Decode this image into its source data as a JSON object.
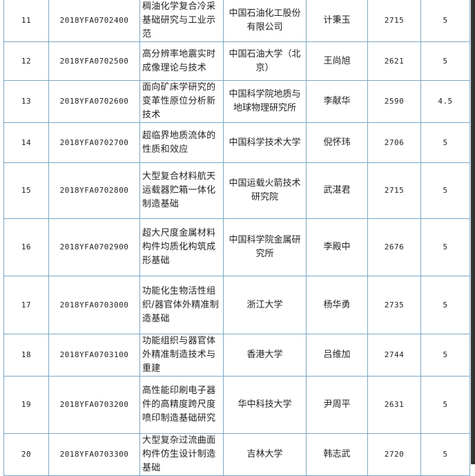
{
  "rows": [
    {
      "no": "11",
      "code": "2018YFA0702400",
      "project": "稠油化学复合冷采基础研究与工业示范",
      "org": "中国石油化工股份有限公司",
      "leader": "计秉玉",
      "budget": "2715",
      "years": "5"
    },
    {
      "no": "12",
      "code": "2018YFA0702500",
      "project": "高分辨率地震实时成像理论与技术",
      "org": "中国石油大学（北京）",
      "leader": "王尚旭",
      "budget": "2621",
      "years": "5"
    },
    {
      "no": "13",
      "code": "2018YFA0702600",
      "project": "面向矿床学研究的变革性原位分析新技术",
      "org": "中国科学院地质与地球物理研究所",
      "leader": "李献华",
      "budget": "2590",
      "years": "4.5"
    },
    {
      "no": "14",
      "code": "2018YFA0702700",
      "project": "超临界地质流体的性质和效应",
      "org": "中国科学技术大学",
      "leader": "倪怀玮",
      "budget": "2706",
      "years": "5"
    },
    {
      "no": "15",
      "code": "2018YFA0702800",
      "project": "大型复合材料航天运载器贮箱一体化制造基础",
      "org": "中国运载火箭技术研究院",
      "leader": "武湛君",
      "budget": "2715",
      "years": "5"
    },
    {
      "no": "16",
      "code": "2018YFA0702900",
      "project": "超大尺度金属材料构件均质化构筑成形基础",
      "org": "中国科学院金属研究所",
      "leader": "李殿中",
      "budget": "2676",
      "years": "5"
    },
    {
      "no": "17",
      "code": "2018YFA0703000",
      "project": "功能化生物活性组织/器官体外精准制造基础",
      "org": "浙江大学",
      "leader": "杨华勇",
      "budget": "2735",
      "years": "5"
    },
    {
      "no": "18",
      "code": "2018YFA0703100",
      "project": "功能组织与器官体外精准制造技术与重建",
      "org": "香港大学",
      "leader": "吕维加",
      "budget": "2744",
      "years": "5"
    },
    {
      "no": "19",
      "code": "2018YFA0703200",
      "project": "高性能印刷电子器件的高精度跨尺度喷印制造基础研究",
      "org": "华中科技大学",
      "leader": "尹周平",
      "budget": "2631",
      "years": "5"
    },
    {
      "no": "20",
      "code": "2018YFA0703300",
      "project": "大型复杂过流曲面构件仿生设计制造基础",
      "org": "吉林大学",
      "leader": "韩志武",
      "budget": "2720",
      "years": "5"
    }
  ],
  "colors": {
    "border": "#7aa7c7",
    "text": "#222222"
  }
}
